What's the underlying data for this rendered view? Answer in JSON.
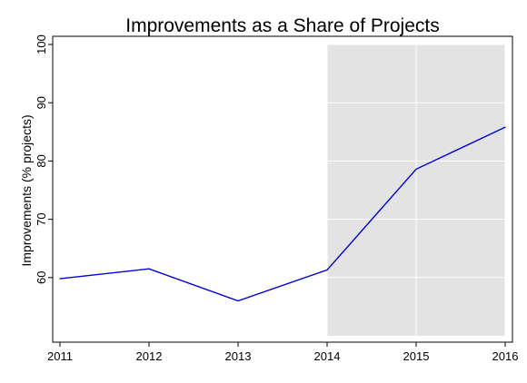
{
  "chart_data": {
    "type": "line",
    "title": "Improvements as a Share of Projects",
    "xlabel": "",
    "ylabel": "Improvements (% projects)",
    "x": [
      2011,
      2012,
      2013,
      2014,
      2015,
      2016
    ],
    "x_tick_labels": [
      "2011",
      "2012",
      "2013",
      "2014",
      "2015",
      "2016"
    ],
    "y_tick_labels": [
      "60",
      "70",
      "80",
      "90",
      "100"
    ],
    "y_ticks": [
      60,
      70,
      80,
      90,
      100
    ],
    "xlim": [
      2011,
      2016
    ],
    "ylim": [
      50,
      100
    ],
    "series": [
      {
        "values": [
          59.8,
          61.5,
          56.0,
          61.3,
          78.6,
          85.8
        ]
      }
    ],
    "shaded_region": {
      "x": [
        2014,
        2016
      ],
      "y": [
        50,
        100
      ]
    },
    "grid": true,
    "colors": {
      "line": "#0000d8",
      "shade": "#e3e3e3",
      "grid": "#ffffff"
    }
  }
}
